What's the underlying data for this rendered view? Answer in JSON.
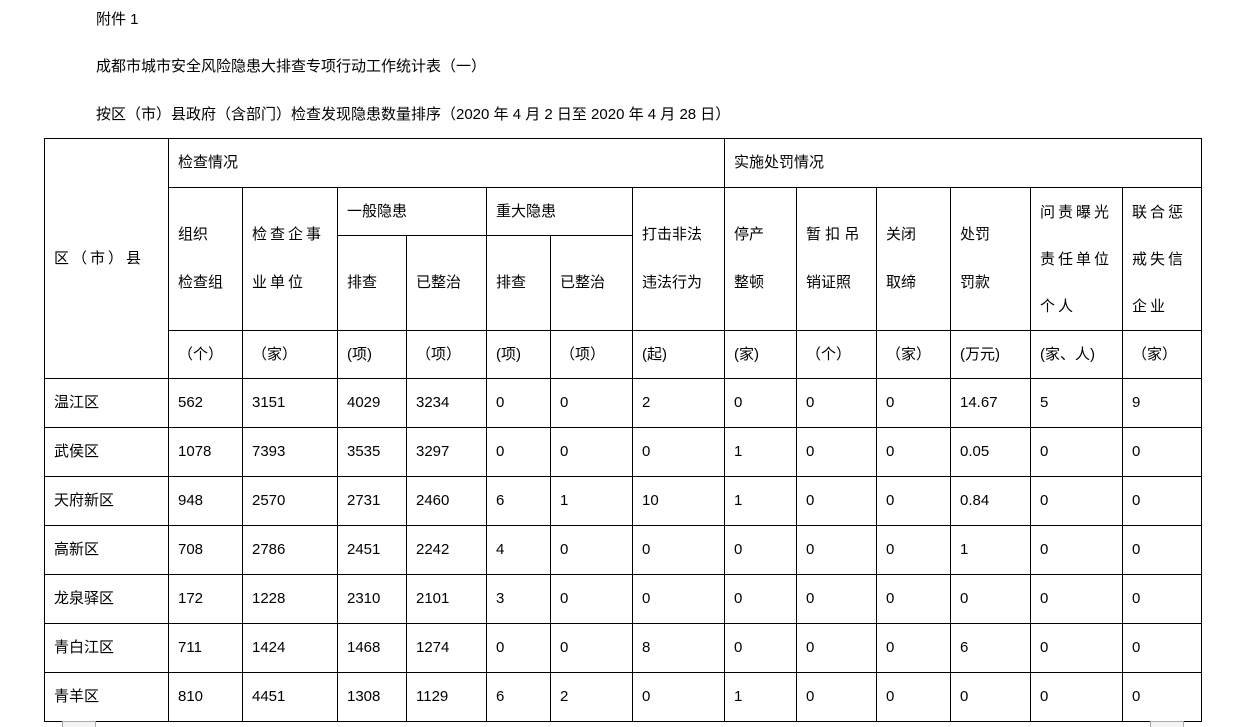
{
  "doc": {
    "attachment": "附件 1",
    "title": "成都市城市安全风险隐患大排查专项行动工作统计表（一）",
    "subtitle": "按区（市）县政府（含部门）检查发现隐患数量排序（2020 年 4 月 2 日至 2020 年 4 月 28 日）"
  },
  "table": {
    "district_header": "区（市）县",
    "group_inspection": "检查情况",
    "group_penalty": "实施处罚情况",
    "general_hazard": "一般隐患",
    "major_hazard": "重大隐患",
    "columns": [
      {
        "label": "组织\n检查组",
        "unit": "（个）"
      },
      {
        "label": "检查企事\n业单位",
        "unit": "（家）"
      },
      {
        "label": "排查",
        "unit": "(项)"
      },
      {
        "label": "已整治",
        "unit": "（项）"
      },
      {
        "label": "排查",
        "unit": "(项)"
      },
      {
        "label": "已整治",
        "unit": "（项）"
      },
      {
        "label": "打击非法\n违法行为",
        "unit": "(起)"
      },
      {
        "label": "停产\n整顿",
        "unit": "(家)"
      },
      {
        "label": "暂 扣 吊\n销证照",
        "unit": "（个）"
      },
      {
        "label": "关闭\n取缔",
        "unit": "（家）"
      },
      {
        "label": "处罚\n罚款",
        "unit": "(万元)"
      },
      {
        "label": "问责曝光\n责任单位\n个人",
        "unit": "(家、人)"
      },
      {
        "label": "联合惩\n戒失信\n企业",
        "unit": "（家）"
      }
    ],
    "rows": [
      {
        "district": "温江区",
        "values": [
          "562",
          "3151",
          "4029",
          "3234",
          "0",
          "0",
          "2",
          "0",
          "0",
          "0",
          "14.67",
          "5",
          "9"
        ]
      },
      {
        "district": "武侯区",
        "values": [
          "1078",
          "7393",
          "3535",
          "3297",
          "0",
          "0",
          "0",
          "1",
          "0",
          "0",
          "0.05",
          "0",
          "0"
        ]
      },
      {
        "district": "天府新区",
        "values": [
          "948",
          "2570",
          "2731",
          "2460",
          "6",
          "1",
          "10",
          "1",
          "0",
          "0",
          "0.84",
          "0",
          "0"
        ]
      },
      {
        "district": "高新区",
        "values": [
          "708",
          "2786",
          "2451",
          "2242",
          "4",
          "0",
          "0",
          "0",
          "0",
          "0",
          "1",
          "0",
          "0"
        ]
      },
      {
        "district": "龙泉驿区",
        "values": [
          "172",
          "1228",
          "2310",
          "2101",
          "3",
          "0",
          "0",
          "0",
          "0",
          "0",
          "0",
          "0",
          "0"
        ]
      },
      {
        "district": "青白江区",
        "values": [
          "711",
          "1424",
          "1468",
          "1274",
          "0",
          "0",
          "8",
          "0",
          "0",
          "0",
          "6",
          "0",
          "0"
        ]
      },
      {
        "district": "青羊区",
        "values": [
          "810",
          "4451",
          "1308",
          "1129",
          "6",
          "2",
          "0",
          "1",
          "0",
          "0",
          "0",
          "0",
          "0"
        ]
      }
    ]
  }
}
